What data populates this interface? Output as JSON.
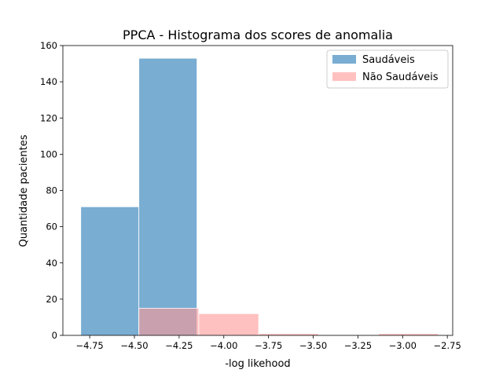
{
  "chart_data": {
    "type": "bar",
    "title": "PPCA - Histograma dos scores de anomalia",
    "xlabel": "-log likehood",
    "ylabel": "Quantidade pacientes",
    "xlim": [
      -4.9,
      -2.72
    ],
    "ylim": [
      0,
      160
    ],
    "xticks": [
      -4.75,
      -4.5,
      -4.25,
      -4.0,
      -3.75,
      -3.5,
      -3.25,
      -3.0,
      -2.75
    ],
    "xtick_labels": [
      "−4.75",
      "−4.50",
      "−4.25",
      "−4.00",
      "−3.75",
      "−3.50",
      "−3.25",
      "−3.00",
      "−2.75"
    ],
    "yticks": [
      0,
      20,
      40,
      60,
      80,
      100,
      120,
      140,
      160
    ],
    "ytick_labels": [
      "0",
      "20",
      "40",
      "60",
      "80",
      "100",
      "120",
      "140",
      "160"
    ],
    "grid": false,
    "legend_position": "top-right",
    "series": [
      {
        "name": "Saudáveis",
        "color": "#1f77b4",
        "opacity": 0.6,
        "bins": [
          {
            "x0": -4.8,
            "x1": -4.475,
            "value": 71
          },
          {
            "x0": -4.475,
            "x1": -4.15,
            "value": 153
          }
        ]
      },
      {
        "name": "Não Saudáveis",
        "color": "#ff9896",
        "opacity": 0.6,
        "bins": [
          {
            "x0": -4.475,
            "x1": -4.14,
            "value": 15
          },
          {
            "x0": -4.14,
            "x1": -3.805,
            "value": 12
          },
          {
            "x0": -3.805,
            "x1": -3.47,
            "value": 1
          },
          {
            "x0": -3.47,
            "x1": -3.135,
            "value": 0
          },
          {
            "x0": -3.135,
            "x1": -2.8,
            "value": 1
          }
        ]
      }
    ]
  }
}
